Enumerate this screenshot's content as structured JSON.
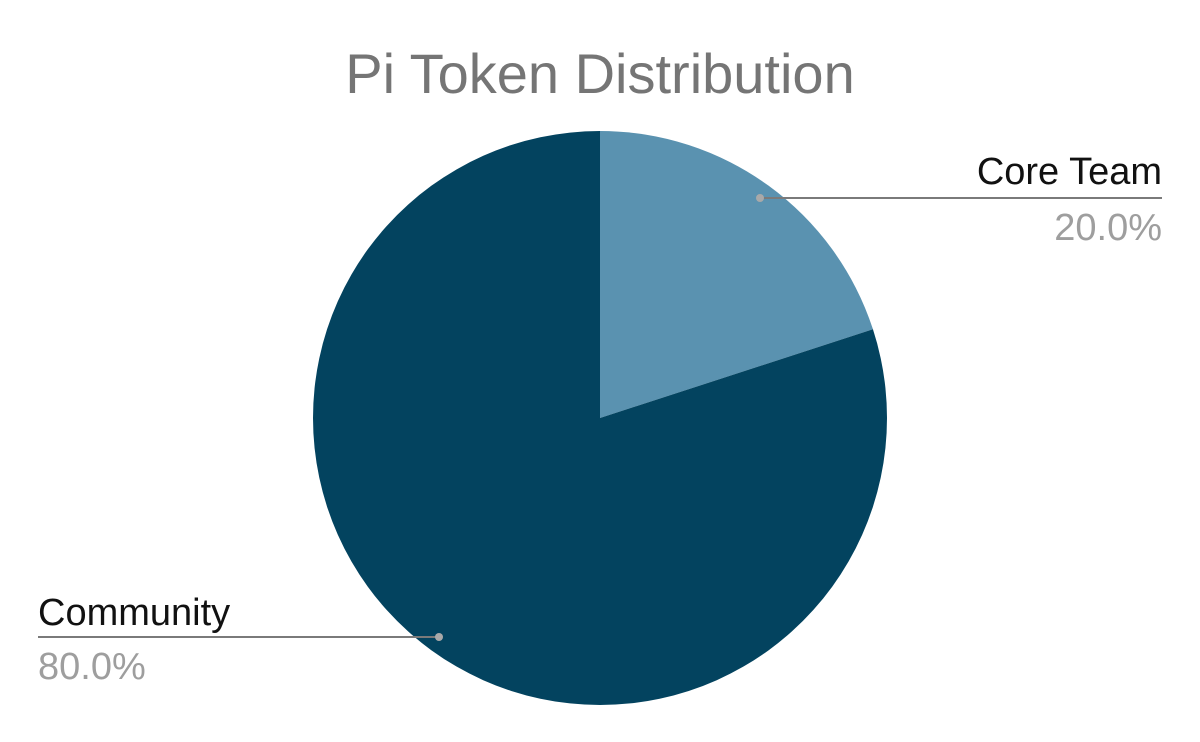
{
  "chart_data": {
    "type": "pie",
    "title": "Pi Token Distribution",
    "slices": [
      {
        "label": "Core Team",
        "value": 20.0,
        "percent_label": "20.0%",
        "color": "#5a92b0"
      },
      {
        "label": "Community",
        "value": 80.0,
        "percent_label": "80.0%",
        "color": "#03435f"
      }
    ],
    "start_angle_deg": 0,
    "direction": "clockwise",
    "legend": "none",
    "labels": "outside-with-leader-lines"
  },
  "colors": {
    "title": "#757575",
    "label": "#111111",
    "percent": "#9e9e9e",
    "leader": "#7a7a7a",
    "background": "#ffffff"
  }
}
